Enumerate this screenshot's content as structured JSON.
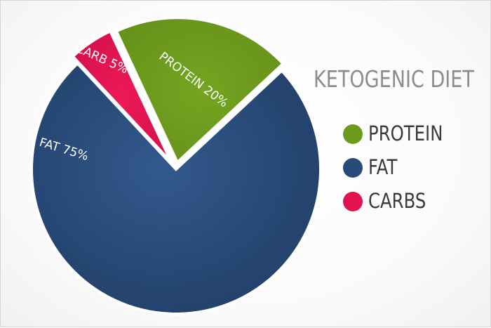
{
  "title": "KETOGENIC DIET",
  "colors": {
    "protein": "#6b9a1c",
    "fat": "#284a78",
    "carbs": "#e0134f",
    "title": "#8c8c8c",
    "legend_text": "#3a3a3a"
  },
  "chart_data": {
    "type": "pie",
    "title": "KETOGENIC DIET",
    "slices": [
      {
        "label": "PROTEIN 20%",
        "value": 20,
        "color": "#6b9a1c"
      },
      {
        "label": "FAT 75%",
        "value": 75,
        "color": "#284a78"
      },
      {
        "label": "CARB 5%",
        "value": 5,
        "color": "#e0134f"
      }
    ],
    "legend": [
      {
        "label": "PROTEIN",
        "color": "#6b9a1c"
      },
      {
        "label": "FAT",
        "color": "#284a78"
      },
      {
        "label": "CARBS",
        "color": "#e0134f"
      }
    ],
    "legend_position": "right"
  }
}
